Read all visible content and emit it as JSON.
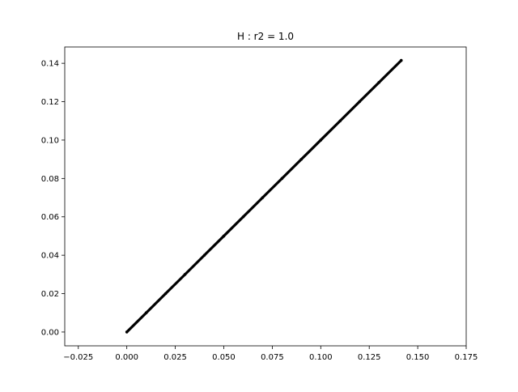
{
  "chart_data": {
    "type": "scatter",
    "title": "H : r2 = 1.0",
    "xlabel": "",
    "ylabel": "",
    "xlim": [
      -0.032,
      0.175
    ],
    "ylim": [
      -0.0072,
      0.1485
    ],
    "x_ticks": [
      -0.025,
      0.0,
      0.025,
      0.05,
      0.075,
      0.1,
      0.125,
      0.15,
      0.175
    ],
    "x_tick_labels": [
      "−0.025",
      "0.000",
      "0.025",
      "0.050",
      "0.075",
      "0.100",
      "0.125",
      "0.150",
      "0.175"
    ],
    "y_ticks": [
      0.0,
      0.02,
      0.04,
      0.06,
      0.08,
      0.1,
      0.12,
      0.14
    ],
    "y_tick_labels": [
      "0.00",
      "0.02",
      "0.04",
      "0.06",
      "0.08",
      "0.10",
      "0.12",
      "0.14"
    ],
    "grid": false,
    "legend": "none",
    "series": [
      {
        "color": "#000000",
        "x": [
          0.0,
          0.01,
          0.02,
          0.03,
          0.04,
          0.05,
          0.06,
          0.07,
          0.08,
          0.09,
          0.1,
          0.11,
          0.12,
          0.13,
          0.1415
        ],
        "y": [
          0.0,
          0.01,
          0.02,
          0.03,
          0.04,
          0.05,
          0.06,
          0.07,
          0.08,
          0.09,
          0.1,
          0.11,
          0.12,
          0.13,
          0.1415
        ]
      }
    ]
  }
}
